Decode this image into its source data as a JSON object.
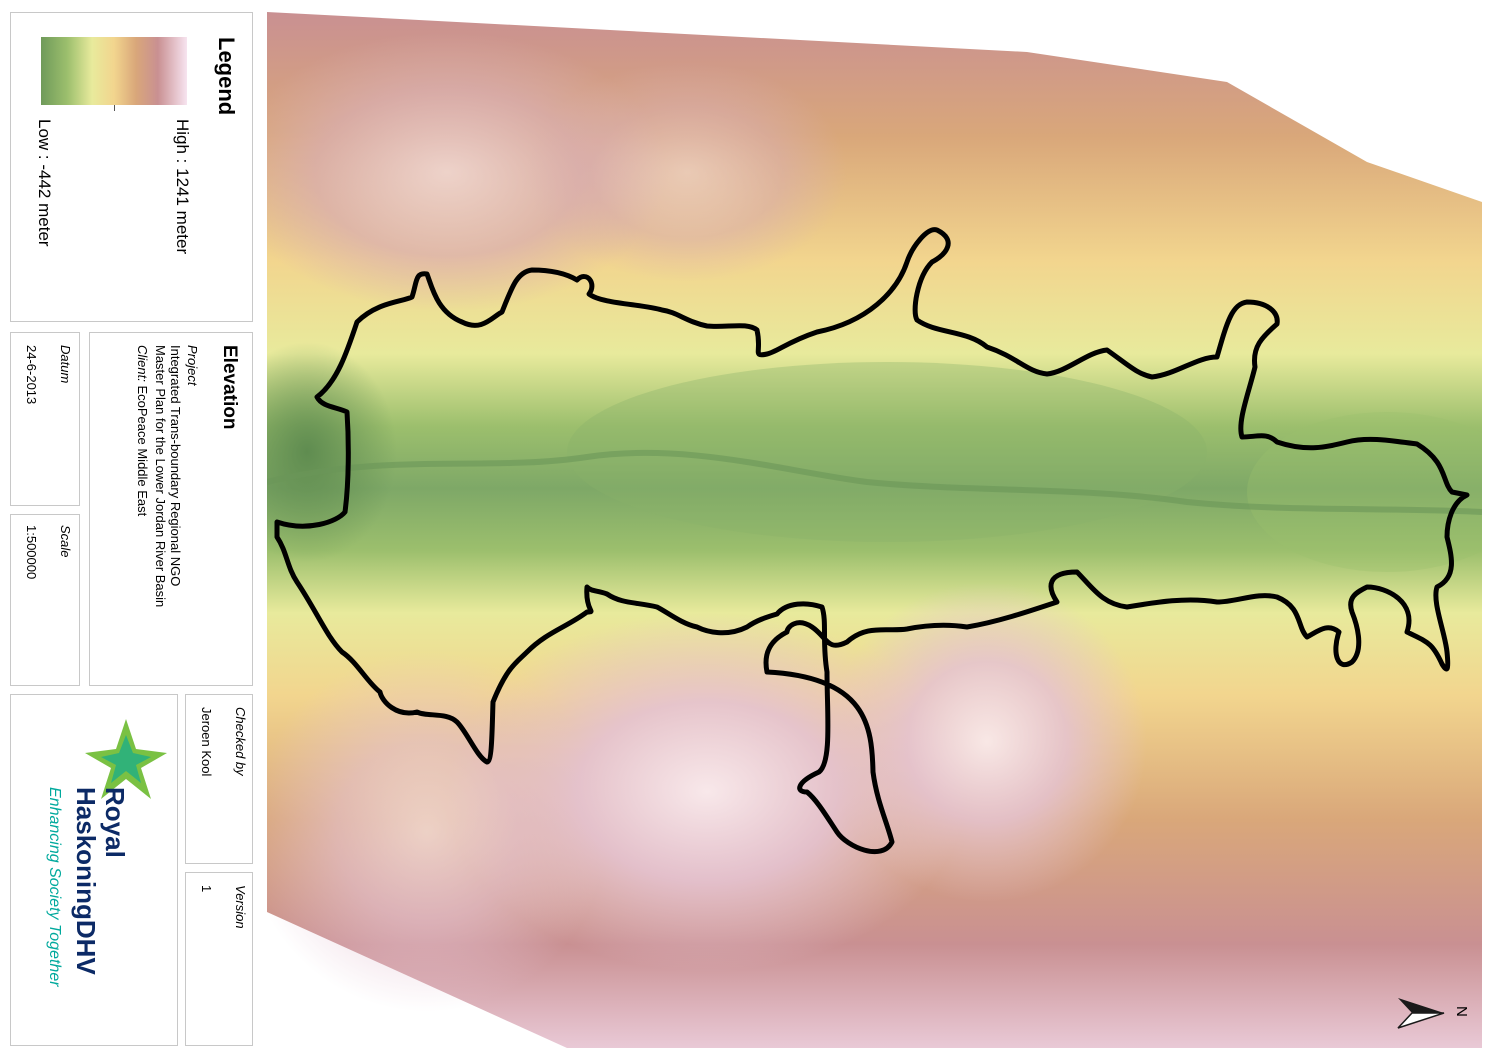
{
  "legend": {
    "title": "Legend",
    "high_label": "High : 1241 meter",
    "low_label": "Low : -442 meter",
    "ramp_colors": [
      "#6f9a5a",
      "#9cbf6d",
      "#e8ea9c",
      "#f2d58e",
      "#d9a77a",
      "#c99092",
      "#f7e4f0"
    ]
  },
  "info": {
    "title": "Elevation",
    "project_label": "Project",
    "project_line1": "Integrated Trans-boundary Regional NGO",
    "project_line2": "Master Plan for the Lower Jordan River Basin",
    "client_label": "Client:",
    "client_value": "EcoPeace Middle East",
    "date_label": "Datum",
    "date_value": "24-6-2013",
    "scale_label": "Scale",
    "scale_value": "1:500000",
    "checked_label": "Checked by",
    "checked_value": "Jeroen Kool",
    "version_label": "Version",
    "version_value": "1"
  },
  "logo": {
    "name_line1": "Royal",
    "name_line2": "HaskoningDHV",
    "tagline": "Enhancing Society Together",
    "brand_navy": "#0c2a66",
    "brand_teal": "#00a99d",
    "brand_green": "#7ac143"
  },
  "north_arrow": {
    "label": "N",
    "icon": "north-arrow-icon"
  },
  "map": {
    "boundary_color": "#000000"
  }
}
